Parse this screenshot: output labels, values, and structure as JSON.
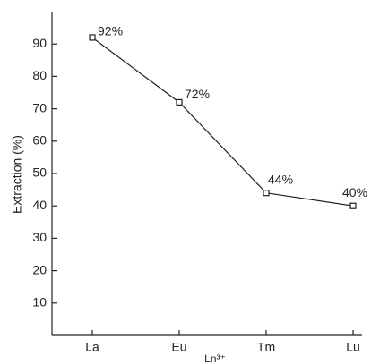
{
  "chart_data": {
    "type": "line",
    "x_label": "Ln³⁺",
    "y_label": "Extraction (%)",
    "categories": [
      "La",
      "Eu",
      "Tm",
      "Lu"
    ],
    "values": [
      92,
      72,
      44,
      40
    ],
    "value_labels": [
      "92%",
      "72%",
      "44%",
      "40%"
    ],
    "color": "#222222",
    "ylim": [
      0,
      100
    ],
    "yticks": [
      10,
      20,
      30,
      40,
      50,
      60,
      70,
      80,
      90
    ]
  }
}
